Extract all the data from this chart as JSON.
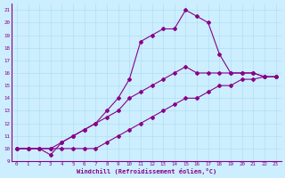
{
  "xlabel": "Windchill (Refroidissement éolien,°C)",
  "bg_color": "#cceeff",
  "line_color": "#880088",
  "xlim": [
    -0.5,
    23.5
  ],
  "ylim": [
    9,
    21.5
  ],
  "xticks": [
    0,
    1,
    2,
    3,
    4,
    5,
    6,
    7,
    8,
    9,
    10,
    11,
    12,
    13,
    14,
    15,
    16,
    17,
    18,
    19,
    20,
    21,
    22,
    23
  ],
  "yticks": [
    9,
    10,
    11,
    12,
    13,
    14,
    15,
    16,
    17,
    18,
    19,
    20,
    21
  ],
  "lines": [
    {
      "x": [
        0,
        1,
        2,
        3,
        4,
        5,
        6,
        7,
        8,
        9,
        10,
        11,
        12,
        13,
        14,
        15,
        16,
        17,
        18,
        19,
        20,
        21,
        22,
        23
      ],
      "y": [
        10,
        10,
        10,
        10,
        10,
        10,
        10,
        10,
        10.5,
        11,
        11.5,
        12,
        12.5,
        13,
        13.5,
        14,
        14,
        14.5,
        15,
        15,
        15.5,
        15.5,
        15.7,
        15.7
      ]
    },
    {
      "x": [
        0,
        1,
        2,
        3,
        4,
        5,
        6,
        7,
        8,
        9,
        10,
        11,
        12,
        13,
        14,
        15,
        16,
        17,
        18,
        19,
        20,
        21,
        22,
        23
      ],
      "y": [
        10,
        10,
        10,
        10,
        10.5,
        11,
        11.5,
        12,
        12.5,
        13,
        14,
        14.5,
        15,
        15.5,
        16,
        16.5,
        16,
        16,
        16,
        16,
        16,
        16,
        15.7,
        15.7
      ]
    },
    {
      "x": [
        0,
        1,
        2,
        3,
        4,
        5,
        6,
        7,
        8,
        9,
        10,
        11,
        12,
        13,
        14,
        15,
        16,
        17,
        18,
        19,
        20,
        21,
        22,
        23
      ],
      "y": [
        10,
        10,
        10,
        9.5,
        10.5,
        11,
        11.5,
        12,
        13,
        14,
        15.5,
        18.5,
        19,
        19.5,
        19.5,
        21,
        20.5,
        20,
        17.5,
        16,
        16,
        16,
        15.7,
        15.7
      ]
    }
  ]
}
